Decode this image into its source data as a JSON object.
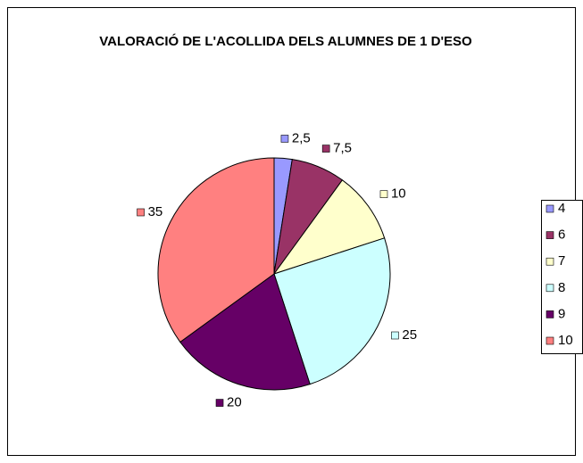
{
  "chart_data": {
    "type": "pie",
    "title": "VALORACIÓ DE L'ACOLLIDA DELS ALUMNES DE 1 D'ESO",
    "categories": [
      "4",
      "6",
      "7",
      "8",
      "9",
      "10"
    ],
    "values": [
      2.5,
      7.5,
      10,
      25,
      20,
      35
    ],
    "value_labels": [
      "2,5",
      "7,5",
      "10",
      "25",
      "20",
      "35"
    ],
    "colors": [
      "#9999FF",
      "#993366",
      "#FFFFCC",
      "#CCFFFF",
      "#660066",
      "#FF8080"
    ],
    "legend": "right"
  }
}
